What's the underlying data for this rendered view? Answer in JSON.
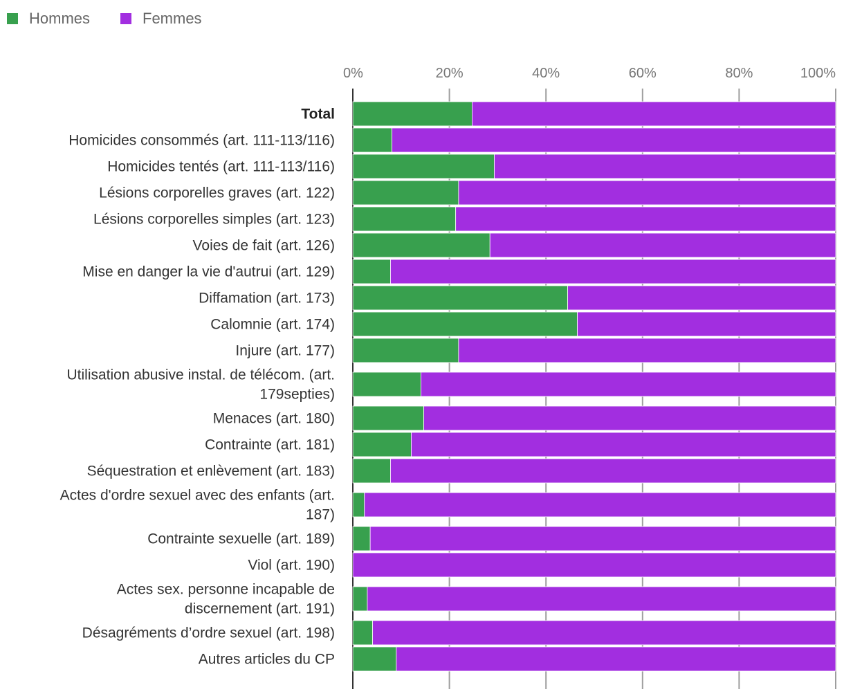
{
  "chart_data": {
    "type": "bar",
    "orientation": "horizontal",
    "stacked": "percent",
    "title": "",
    "xlabel": "",
    "ylabel": "",
    "xlim": [
      0,
      100
    ],
    "x_ticks": [
      "0%",
      "20%",
      "40%",
      "60%",
      "80%",
      "100%"
    ],
    "grid": true,
    "legend_position": "top-left",
    "categories": [
      [
        "Total"
      ],
      [
        "Homicides consommés (art. 111-113/116)"
      ],
      [
        "Homicides tentés (art. 111-113/116)"
      ],
      [
        "Lésions corporelles graves (art. 122)"
      ],
      [
        "Lésions corporelles simples (art. 123)"
      ],
      [
        "Voies de fait (art. 126)"
      ],
      [
        "Mise en danger la vie d'autrui (art. 129)"
      ],
      [
        "Diffamation (art. 173)"
      ],
      [
        "Calomnie (art. 174)"
      ],
      [
        "Injure (art. 177)"
      ],
      [
        "Utilisation abusive instal. de télécom. (art.",
        "179septies)"
      ],
      [
        "Menaces (art. 180)"
      ],
      [
        "Contrainte (art. 181)"
      ],
      [
        "Séquestration et enlèvement (art. 183)"
      ],
      [
        "Actes d'ordre sexuel avec des enfants (art.",
        "187)"
      ],
      [
        "Contrainte sexuelle (art. 189)"
      ],
      [
        "Viol (art. 190)"
      ],
      [
        "Actes sex. personne incapable de",
        "discernement (art. 191)"
      ],
      [
        "Désagréments d’ordre sexuel (art. 198)"
      ],
      [
        "Autres articles du CP"
      ]
    ],
    "bold_categories": [
      0
    ],
    "series": [
      {
        "name": "Hommes",
        "color": "#38a04e",
        "values": [
          24.7,
          8.1,
          29.3,
          21.9,
          21.3,
          28.4,
          7.8,
          44.5,
          46.5,
          21.9,
          14.1,
          14.7,
          12.1,
          7.8,
          2.4,
          3.6,
          0.0,
          3.0,
          4.1,
          9.0
        ]
      },
      {
        "name": "Femmes",
        "color": "#a22ee0",
        "values": [
          75.3,
          91.9,
          70.7,
          78.1,
          78.7,
          71.6,
          92.2,
          55.5,
          53.5,
          78.1,
          85.9,
          85.3,
          87.9,
          92.2,
          97.6,
          96.4,
          100.0,
          97.0,
          95.9,
          91.0
        ]
      }
    ]
  }
}
